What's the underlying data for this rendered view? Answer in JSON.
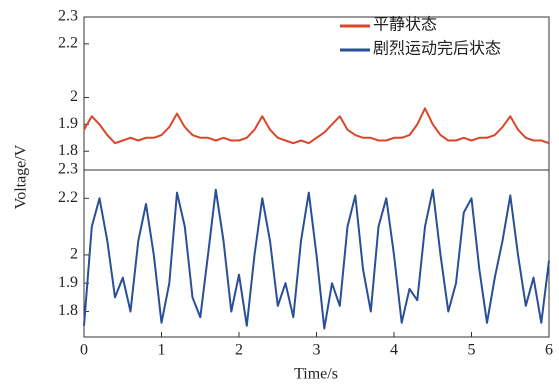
{
  "chart_data": [
    {
      "type": "line",
      "ylabel": "Voltage/V",
      "legend": "upper right",
      "grid": false,
      "x": [
        0,
        0.1,
        0.2,
        0.3,
        0.4,
        0.5,
        0.6,
        0.7,
        0.8,
        0.9,
        1,
        1.1,
        1.2,
        1.3,
        1.4,
        1.5,
        1.6,
        1.7,
        1.8,
        1.9,
        2,
        2.1,
        2.2,
        2.3,
        2.4,
        2.5,
        2.6,
        2.7,
        2.8,
        2.9,
        3,
        3.1,
        3.2,
        3.3,
        3.4,
        3.5,
        3.6,
        3.7,
        3.8,
        3.9,
        4,
        4.1,
        4.2,
        4.3,
        4.4,
        4.5,
        4.6,
        4.7,
        4.8,
        4.9,
        5,
        5.1,
        5.2,
        5.3,
        5.4,
        5.5,
        5.6,
        5.7,
        5.8,
        5.9,
        6
      ],
      "xlim": [
        0,
        6
      ],
      "ylim": [
        1.73,
        2.3
      ],
      "yticks": [
        1.8,
        1.9,
        2.0,
        2.2,
        2.3
      ],
      "series": [
        {
          "name": "平静状态",
          "color": "#d9472b",
          "values": [
            1.88,
            1.93,
            1.9,
            1.86,
            1.83,
            1.84,
            1.85,
            1.84,
            1.85,
            1.85,
            1.86,
            1.89,
            1.94,
            1.89,
            1.86,
            1.85,
            1.85,
            1.84,
            1.85,
            1.84,
            1.84,
            1.85,
            1.88,
            1.93,
            1.88,
            1.85,
            1.84,
            1.83,
            1.84,
            1.83,
            1.85,
            1.87,
            1.9,
            1.93,
            1.88,
            1.86,
            1.85,
            1.85,
            1.84,
            1.84,
            1.85,
            1.85,
            1.86,
            1.9,
            1.96,
            1.9,
            1.86,
            1.84,
            1.84,
            1.85,
            1.84,
            1.85,
            1.85,
            1.86,
            1.89,
            1.93,
            1.88,
            1.85,
            1.84,
            1.84,
            1.83
          ]
        }
      ]
    },
    {
      "type": "line",
      "xlabel": "Time/s",
      "grid": false,
      "x": [
        0,
        0.1,
        0.2,
        0.3,
        0.4,
        0.5,
        0.6,
        0.7,
        0.8,
        0.9,
        1,
        1.1,
        1.2,
        1.3,
        1.4,
        1.5,
        1.6,
        1.7,
        1.8,
        1.9,
        2,
        2.1,
        2.2,
        2.3,
        2.4,
        2.5,
        2.6,
        2.7,
        2.8,
        2.9,
        3,
        3.1,
        3.2,
        3.3,
        3.4,
        3.5,
        3.6,
        3.7,
        3.8,
        3.9,
        4,
        4.1,
        4.2,
        4.3,
        4.4,
        4.5,
        4.6,
        4.7,
        4.8,
        4.9,
        5,
        5.1,
        5.2,
        5.3,
        5.4,
        5.5,
        5.6,
        5.7,
        5.8,
        5.9,
        6
      ],
      "xlim": [
        0,
        6
      ],
      "xticks": [
        0,
        1,
        2,
        3,
        4,
        5,
        6
      ],
      "ylim": [
        1.71,
        2.3
      ],
      "yticks": [
        1.8,
        1.9,
        2.0,
        2.2,
        2.3
      ],
      "series": [
        {
          "name": "剧烈运动完后状态",
          "color": "#2a4f97",
          "values": [
            1.75,
            2.1,
            2.2,
            2.05,
            1.85,
            1.92,
            1.8,
            2.05,
            2.18,
            2.0,
            1.76,
            1.9,
            2.22,
            2.1,
            1.85,
            1.78,
            2.0,
            2.23,
            2.05,
            1.8,
            1.93,
            1.75,
            2.0,
            2.2,
            2.05,
            1.82,
            1.9,
            1.78,
            2.05,
            2.22,
            2.0,
            1.74,
            1.9,
            1.82,
            2.1,
            2.21,
            1.95,
            1.8,
            2.1,
            2.2,
            2.0,
            1.76,
            1.88,
            1.84,
            2.1,
            2.23,
            2.0,
            1.8,
            1.9,
            2.15,
            2.2,
            1.95,
            1.76,
            1.92,
            2.05,
            2.21,
            2.0,
            1.82,
            1.92,
            1.76,
            1.98
          ]
        }
      ]
    }
  ]
}
